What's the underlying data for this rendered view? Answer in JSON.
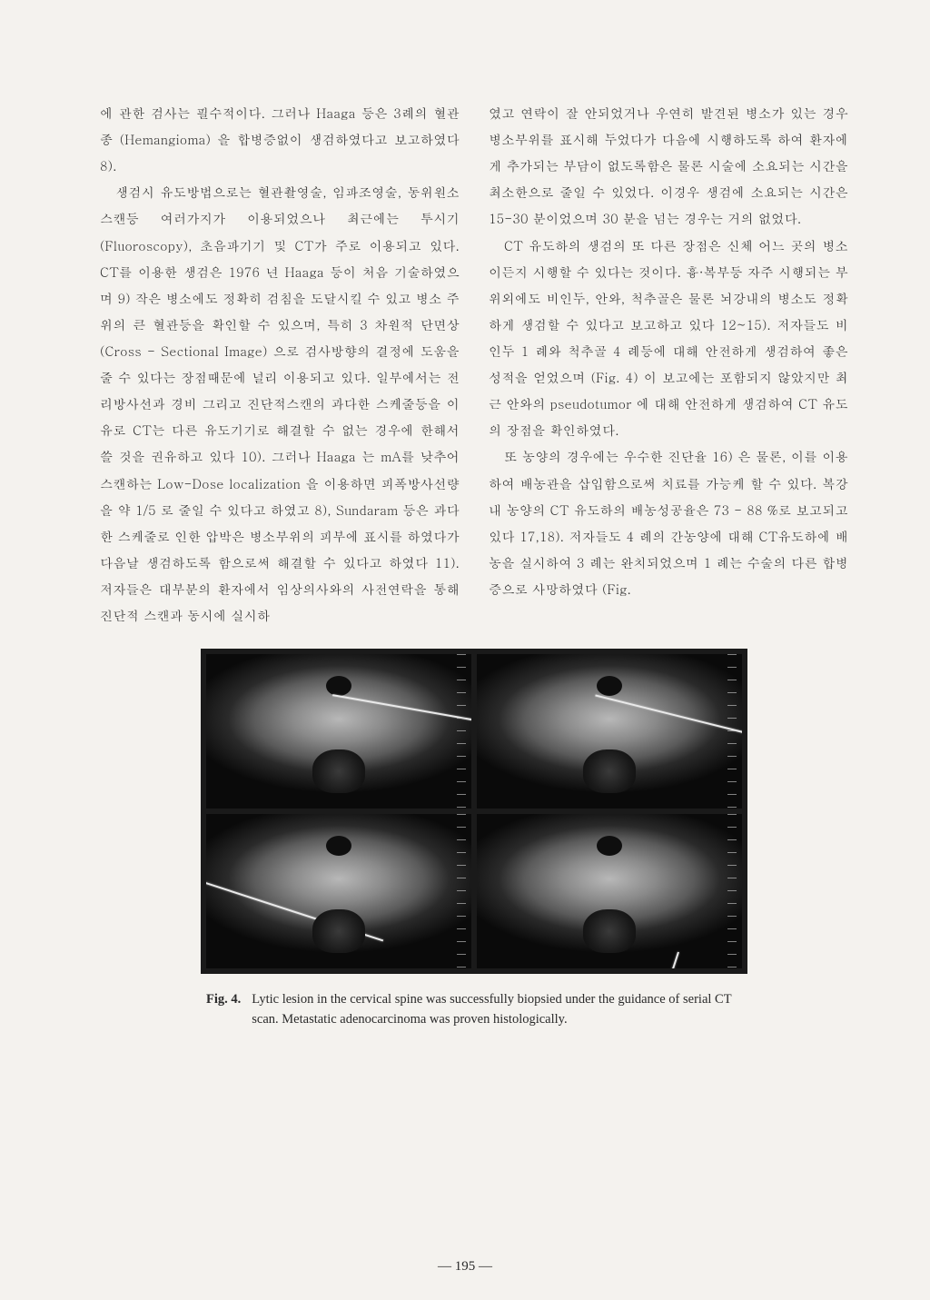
{
  "left_column": {
    "p1": "에 관한 검사는 필수적이다. 그러나 Haaga 등은 3례의 혈관종 (Hemangioma) 을 합병증없이 생검하였다고 보고하였다 8).",
    "p2": "생검시 유도방법으로는 혈관촬영술, 임파조영술, 동위원소스캔등 여러가지가 이용되었으나 최근에는 투시기 (Fluoroscopy), 초음파기기 및 CT가 주로 이용되고 있다. CT를 이용한 생검은 1976 년 Haaga 등이 처음 기술하였으며 9) 작은 병소에도 정확히 검침을 도달시킬 수 있고 병소 주위의 큰 혈관등을 확인할 수 있으며, 특히 3 차원적 단면상 (Cross - Sectional Image) 으로 검사방향의 결정에 도움을 줄 수 있다는 장점때문에 널리 이용되고 있다. 일부에서는 전리방사선과 경비 그리고 진단적스캔의 과다한 스케줄등을 이유로 CT는 다른 유도기기로 해결할 수 없는 경우에 한해서 쓸 것을 권유하고 있다 10). 그러나 Haaga 는 mA를 낮추어 스캔하는 Low-Dose localization 을 이용하면 피폭방사선량을 약 1/5 로 줄일 수 있다고 하였고 8), Sundaram 등은 과다한 스케줄로 인한 압박은 병소부위의 피부에 표시를 하였다가 다음날 생검하도록 함으로써 해결할 수 있다고 하였다 11). 저자들은 대부분의 환자에서 임상의사와의 사전연락을 통해 진단적 스캔과 동시에 실시하"
  },
  "right_column": {
    "p1": "였고 연락이 잘 안되었거나 우연히 발견된 병소가 있는 경우 병소부위를 표시해 두었다가 다음에 시행하도록 하여 환자에게 추가되는 부담이 없도록함은 물론 시술에 소요되는 시간을 최소한으로 줄일 수 있었다. 이경우 생검에 소요되는 시간은 15-30 분이었으며 30 분을 넘는 경우는 거의 없었다.",
    "p2": "CT 유도하의 생검의 또 다른 장점은 신체 어느 곳의 병소이든지 시행할 수 있다는 것이다. 흉·복부등 자주 시행되는 부위외에도 비인두, 안와, 척추골은 물론 뇌강내의 병소도 정확하게 생검할 수 있다고 보고하고 있다 12~15). 저자들도 비인두 1 례와 척추골 4 례등에 대해 안전하게 생검하여 좋은 성적을 얻었으며 (Fig. 4) 이 보고에는 포함되지 않았지만 최근 안와의 pseudotumor 에 대해 안전하게 생검하여 CT 유도의 장점을 확인하였다.",
    "p3": "또 농양의 경우에는 우수한 진단율 16) 은 물론, 이를 이용하여 배농관을 삽입함으로써 치료를 가능케 할 수 있다. 복강내 농양의 CT 유도하의 배농성공율은 73 - 88 %로 보고되고 있다 17,18). 저자들도 4 례의 간농양에 대해 CT유도하에 배농을 실시하여 3 례는 완치되었으며 1 례는 수술의 다른 합병증으로 사망하였다 (Fig."
  },
  "figure": {
    "label": "Fig. 4.",
    "caption": "Lytic lesion in the cervical spine was successfully biopsied under the guidance of serial CT scan. Metastatic adenocarcinoma was proven histologically."
  },
  "page_number": "— 195 —"
}
